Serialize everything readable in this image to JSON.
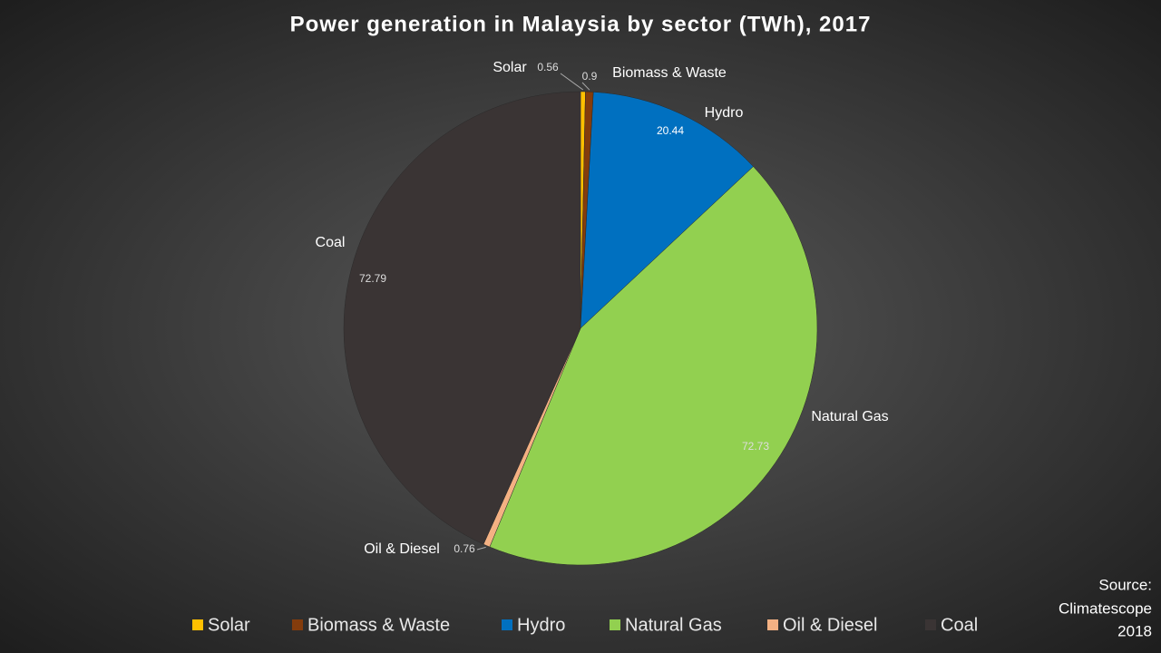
{
  "chart_data": {
    "type": "pie",
    "title": "Power generation in Malaysia by sector (TWh), 2017",
    "categories": [
      "Solar",
      "Biomass & Waste",
      "Hydro",
      "Natural Gas",
      "Oil & Diesel",
      "Coal"
    ],
    "values": [
      0.56,
      0.9,
      20.44,
      72.73,
      0.76,
      72.79
    ],
    "colors": [
      "#ffc000",
      "#843c0c",
      "#0070c0",
      "#92d050",
      "#f4b183",
      "#3a3434"
    ],
    "legend": "bottom",
    "source": [
      "Source:",
      "Climatescope",
      "2018"
    ]
  }
}
